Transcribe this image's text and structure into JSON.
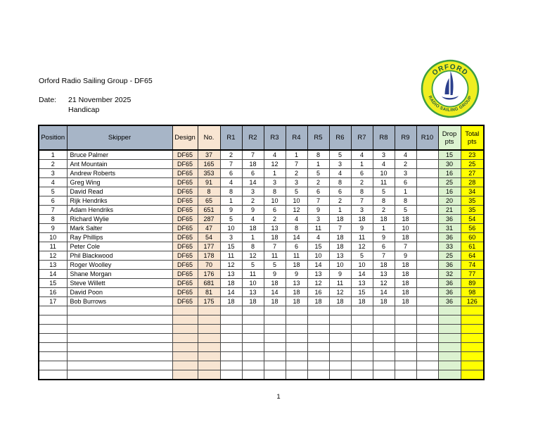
{
  "page": {
    "title": "Orford Radio Sailing Group - DF65",
    "date_label": "Date:",
    "date_value": "21 November 2025",
    "event_type": "Handicap",
    "page_number": "1"
  },
  "logo": {
    "top_text": "ORFORD",
    "bottom_text": "RADIO SAILING GROUP",
    "colors": {
      "ring_fill": "#f0ee21",
      "ring_stroke": "#3d9e41",
      "text": "#1e5c3c",
      "sail": "#2b3f8c",
      "inner_fill": "#ffffff"
    }
  },
  "table": {
    "columns": [
      {
        "key": "position",
        "label": "Position",
        "width": 40,
        "header_fill": "#a7b5c7",
        "body_fill": "#ffffff",
        "align": "center"
      },
      {
        "key": "skipper",
        "label": "Skipper",
        "width": 150,
        "header_fill": "#a7b5c7",
        "body_fill": "#ffffff",
        "align": "left"
      },
      {
        "key": "design",
        "label": "Design",
        "width": 36,
        "header_fill": "#f8e5d2",
        "body_fill": "#f8e5d2",
        "align": "center"
      },
      {
        "key": "no",
        "label": "No.",
        "width": 32,
        "header_fill": "#f8e5d2",
        "body_fill": "#f8e5d2",
        "align": "center"
      },
      {
        "key": "r1",
        "label": "R1",
        "width": 31,
        "header_fill": "#a7b5c7",
        "body_fill": "#ffffff",
        "align": "center"
      },
      {
        "key": "r2",
        "label": "R2",
        "width": 31,
        "header_fill": "#a7b5c7",
        "body_fill": "#ffffff",
        "align": "center"
      },
      {
        "key": "r3",
        "label": "R3",
        "width": 31,
        "header_fill": "#a7b5c7",
        "body_fill": "#ffffff",
        "align": "center"
      },
      {
        "key": "r4",
        "label": "R4",
        "width": 31,
        "header_fill": "#a7b5c7",
        "body_fill": "#ffffff",
        "align": "center"
      },
      {
        "key": "r5",
        "label": "R5",
        "width": 31,
        "header_fill": "#a7b5c7",
        "body_fill": "#ffffff",
        "align": "center"
      },
      {
        "key": "r6",
        "label": "R6",
        "width": 31,
        "header_fill": "#a7b5c7",
        "body_fill": "#ffffff",
        "align": "center"
      },
      {
        "key": "r7",
        "label": "R7",
        "width": 31,
        "header_fill": "#a7b5c7",
        "body_fill": "#ffffff",
        "align": "center"
      },
      {
        "key": "r8",
        "label": "R8",
        "width": 31,
        "header_fill": "#a7b5c7",
        "body_fill": "#ffffff",
        "align": "center"
      },
      {
        "key": "r9",
        "label": "R9",
        "width": 31,
        "header_fill": "#a7b5c7",
        "body_fill": "#ffffff",
        "align": "center"
      },
      {
        "key": "r10",
        "label": "R10",
        "width": 31,
        "header_fill": "#a7b5c7",
        "body_fill": "#ffffff",
        "align": "center"
      },
      {
        "key": "drop",
        "label": "Drop pts",
        "width": 32,
        "header_fill": "#dcf2d0",
        "body_fill": "#dcf2d0",
        "align": "center"
      },
      {
        "key": "total",
        "label": "Total pts",
        "width": 33,
        "header_fill": "#ffff00",
        "body_fill": "#ffff00",
        "align": "center"
      }
    ],
    "rows": [
      {
        "position": "1",
        "skipper": "Bruce Palmer",
        "design": "DF65",
        "no": "37",
        "r1": "2",
        "r2": "7",
        "r3": "4",
        "r4": "1",
        "r5": "8",
        "r6": "5",
        "r7": "4",
        "r8": "3",
        "r9": "4",
        "r10": "",
        "drop": "15",
        "total": "23"
      },
      {
        "position": "2",
        "skipper": "Ant Mountain",
        "design": "DF65",
        "no": "165",
        "r1": "7",
        "r2": "18",
        "r3": "12",
        "r4": "7",
        "r5": "1",
        "r6": "3",
        "r7": "1",
        "r8": "4",
        "r9": "2",
        "r10": "",
        "drop": "30",
        "total": "25"
      },
      {
        "position": "3",
        "skipper": "Andrew Roberts",
        "design": "DF65",
        "no": "353",
        "r1": "6",
        "r2": "6",
        "r3": "1",
        "r4": "2",
        "r5": "5",
        "r6": "4",
        "r7": "6",
        "r8": "10",
        "r9": "3",
        "r10": "",
        "drop": "16",
        "total": "27"
      },
      {
        "position": "4",
        "skipper": "Greg Wing",
        "design": "DF65",
        "no": "91",
        "r1": "4",
        "r2": "14",
        "r3": "3",
        "r4": "3",
        "r5": "2",
        "r6": "8",
        "r7": "2",
        "r8": "11",
        "r9": "6",
        "r10": "",
        "drop": "25",
        "total": "28"
      },
      {
        "position": "5",
        "skipper": "David Read",
        "design": "DF65",
        "no": "8",
        "r1": "8",
        "r2": "3",
        "r3": "8",
        "r4": "5",
        "r5": "6",
        "r6": "6",
        "r7": "8",
        "r8": "5",
        "r9": "1",
        "r10": "",
        "drop": "16",
        "total": "34"
      },
      {
        "position": "6",
        "skipper": "Rijk Hendriks",
        "design": "DF65",
        "no": "65",
        "r1": "1",
        "r2": "2",
        "r3": "10",
        "r4": "10",
        "r5": "7",
        "r6": "2",
        "r7": "7",
        "r8": "8",
        "r9": "8",
        "r10": "",
        "drop": "20",
        "total": "35"
      },
      {
        "position": "7",
        "skipper": "Adam Hendriks",
        "design": "DF65",
        "no": "651",
        "r1": "9",
        "r2": "9",
        "r3": "6",
        "r4": "12",
        "r5": "9",
        "r6": "1",
        "r7": "3",
        "r8": "2",
        "r9": "5",
        "r10": "",
        "drop": "21",
        "total": "35"
      },
      {
        "position": "8",
        "skipper": "Richard Wylie",
        "design": "DF65",
        "no": "287",
        "r1": "5",
        "r2": "4",
        "r3": "2",
        "r4": "4",
        "r5": "3",
        "r6": "18",
        "r7": "18",
        "r8": "18",
        "r9": "18",
        "r10": "",
        "drop": "36",
        "total": "54"
      },
      {
        "position": "9",
        "skipper": "Mark Salter",
        "design": "DF65",
        "no": "47",
        "r1": "10",
        "r2": "18",
        "r3": "13",
        "r4": "8",
        "r5": "11",
        "r6": "7",
        "r7": "9",
        "r8": "1",
        "r9": "10",
        "r10": "",
        "drop": "31",
        "total": "56"
      },
      {
        "position": "10",
        "skipper": "Ray Phillips",
        "design": "DF65",
        "no": "54",
        "r1": "3",
        "r2": "1",
        "r3": "18",
        "r4": "14",
        "r5": "4",
        "r6": "18",
        "r7": "11",
        "r8": "9",
        "r9": "18",
        "r10": "",
        "drop": "36",
        "total": "60"
      },
      {
        "position": "11",
        "skipper": "Peter Cole",
        "design": "DF65",
        "no": "177",
        "r1": "15",
        "r2": "8",
        "r3": "7",
        "r4": "6",
        "r5": "15",
        "r6": "18",
        "r7": "12",
        "r8": "6",
        "r9": "7",
        "r10": "",
        "drop": "33",
        "total": "61"
      },
      {
        "position": "12",
        "skipper": "Phil Blackwood",
        "design": "DF65",
        "no": "178",
        "r1": "11",
        "r2": "12",
        "r3": "11",
        "r4": "11",
        "r5": "10",
        "r6": "13",
        "r7": "5",
        "r8": "7",
        "r9": "9",
        "r10": "",
        "drop": "25",
        "total": "64"
      },
      {
        "position": "13",
        "skipper": "Roger Woolley",
        "design": "DF65",
        "no": "70",
        "r1": "12",
        "r2": "5",
        "r3": "5",
        "r4": "18",
        "r5": "14",
        "r6": "10",
        "r7": "10",
        "r8": "18",
        "r9": "18",
        "r10": "",
        "drop": "36",
        "total": "74"
      },
      {
        "position": "14",
        "skipper": "Shane Morgan",
        "design": "DF65",
        "no": "176",
        "r1": "13",
        "r2": "11",
        "r3": "9",
        "r4": "9",
        "r5": "13",
        "r6": "9",
        "r7": "14",
        "r8": "13",
        "r9": "18",
        "r10": "",
        "drop": "32",
        "total": "77"
      },
      {
        "position": "15",
        "skipper": "Steve Willett",
        "design": "DF65",
        "no": "681",
        "r1": "18",
        "r2": "10",
        "r3": "18",
        "r4": "13",
        "r5": "12",
        "r6": "11",
        "r7": "13",
        "r8": "12",
        "r9": "18",
        "r10": "",
        "drop": "36",
        "total": "89"
      },
      {
        "position": "16",
        "skipper": "David Poon",
        "design": "DF65",
        "no": "81",
        "r1": "14",
        "r2": "13",
        "r3": "14",
        "r4": "18",
        "r5": "16",
        "r6": "12",
        "r7": "15",
        "r8": "14",
        "r9": "18",
        "r10": "",
        "drop": "36",
        "total": "98"
      },
      {
        "position": "17",
        "skipper": "Bob Burrows",
        "design": "DF65",
        "no": "175",
        "r1": "18",
        "r2": "18",
        "r3": "18",
        "r4": "18",
        "r5": "18",
        "r6": "18",
        "r7": "18",
        "r8": "18",
        "r9": "18",
        "r10": "",
        "drop": "36",
        "total": "126"
      }
    ],
    "empty_row_count": 8
  }
}
